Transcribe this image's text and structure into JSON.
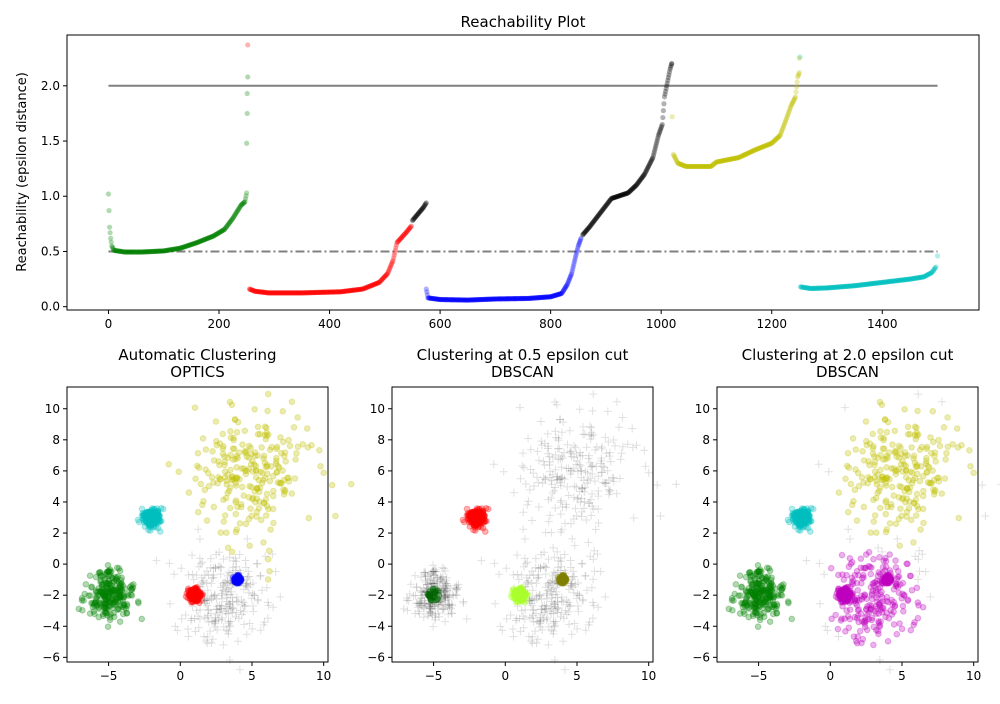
{
  "chart_data": [
    {
      "type": "scatter",
      "title": "Reachability Plot",
      "xlabel": "",
      "ylabel": "Reachability (epsilon distance)",
      "xlim": [
        -75,
        1575
      ],
      "ylim": [
        -0.03,
        2.46
      ],
      "xticks": [
        "0",
        "200",
        "400",
        "600",
        "800",
        "1000",
        "1200",
        "1400"
      ],
      "xtick_values": [
        0,
        200,
        400,
        600,
        800,
        1000,
        1200,
        1400
      ],
      "yticks": [
        "0.0",
        "0.5",
        "1.0",
        "1.5",
        "2.0"
      ],
      "ytick_values": [
        0,
        0.5,
        1.0,
        1.5,
        2.0
      ],
      "grid": false,
      "reference_lines": [
        {
          "y": 2.0,
          "x_range": [
            0,
            1500
          ],
          "style": "solid",
          "color": "#808080"
        },
        {
          "y": 0.5,
          "x_range": [
            0,
            1500
          ],
          "style": "dash-dot",
          "color": "#808080"
        }
      ],
      "series": [
        {
          "color": "#008000",
          "points": [
            [
              0,
              1.02
            ],
            [
              2,
              0.72
            ],
            [
              4,
              0.62
            ],
            [
              6,
              0.55
            ],
            [
              10,
              0.51
            ],
            [
              30,
              0.495
            ],
            [
              60,
              0.495
            ],
            [
              100,
              0.505
            ],
            [
              130,
              0.53
            ],
            [
              160,
              0.58
            ],
            [
              190,
              0.64
            ],
            [
              210,
              0.7
            ],
            [
              225,
              0.8
            ],
            [
              240,
              0.92
            ],
            [
              247,
              0.95
            ],
            [
              250,
              1.03
            ]
          ]
        },
        {
          "color": "#ff0000",
          "points": [
            [
              255,
              0.16
            ],
            [
              265,
              0.14
            ],
            [
              290,
              0.125
            ],
            [
              350,
              0.125
            ],
            [
              420,
              0.135
            ],
            [
              460,
              0.16
            ],
            [
              490,
              0.22
            ],
            [
              505,
              0.3
            ],
            [
              515,
              0.42
            ],
            [
              522,
              0.58
            ],
            [
              540,
              0.68
            ],
            [
              548,
              0.73
            ]
          ]
        },
        {
          "color": "#000000",
          "points": [
            [
              550,
              0.78
            ],
            [
              560,
              0.84
            ],
            [
              570,
              0.9
            ],
            [
              575,
              0.94
            ]
          ]
        },
        {
          "color": "#0000ff",
          "points": [
            [
              575,
              0.16
            ],
            [
              578,
              0.08
            ],
            [
              600,
              0.065
            ],
            [
              650,
              0.06
            ],
            [
              700,
              0.07
            ],
            [
              760,
              0.075
            ],
            [
              800,
              0.09
            ],
            [
              820,
              0.12
            ],
            [
              830,
              0.2
            ],
            [
              838,
              0.3
            ],
            [
              845,
              0.45
            ],
            [
              850,
              0.55
            ],
            [
              855,
              0.62
            ]
          ]
        },
        {
          "color": "#000000",
          "points": [
            [
              858,
              0.65
            ],
            [
              870,
              0.72
            ],
            [
              890,
              0.85
            ],
            [
              910,
              0.98
            ],
            [
              940,
              1.03
            ],
            [
              955,
              1.1
            ],
            [
              970,
              1.2
            ],
            [
              985,
              1.35
            ],
            [
              995,
              1.55
            ],
            [
              1002,
              1.65
            ],
            [
              1006,
              1.9
            ],
            [
              1012,
              2.05
            ],
            [
              1016,
              2.15
            ],
            [
              1019,
              2.2
            ]
          ]
        },
        {
          "color": "#bfbf00",
          "points": [
            [
              1022,
              1.38
            ],
            [
              1030,
              1.3
            ],
            [
              1045,
              1.27
            ],
            [
              1090,
              1.27
            ],
            [
              1100,
              1.31
            ],
            [
              1140,
              1.35
            ],
            [
              1170,
              1.42
            ],
            [
              1200,
              1.48
            ],
            [
              1215,
              1.55
            ],
            [
              1225,
              1.68
            ],
            [
              1235,
              1.82
            ],
            [
              1243,
              1.9
            ],
            [
              1247,
              2.08
            ],
            [
              1250,
              2.12
            ]
          ]
        },
        {
          "color": "#00bfbf",
          "points": [
            [
              1252,
              0.18
            ],
            [
              1270,
              0.165
            ],
            [
              1300,
              0.17
            ],
            [
              1350,
              0.19
            ],
            [
              1400,
              0.22
            ],
            [
              1450,
              0.25
            ],
            [
              1475,
              0.27
            ],
            [
              1490,
              0.31
            ],
            [
              1497,
              0.36
            ]
          ]
        }
      ],
      "outliers": [
        {
          "color": "#ff0000",
          "x": 252,
          "y": 2.37
        },
        {
          "color": "#008000",
          "x": 252,
          "y": 2.08
        },
        {
          "color": "#008000",
          "x": 251,
          "y": 1.93
        },
        {
          "color": "#008000",
          "x": 251,
          "y": 1.75
        },
        {
          "color": "#008000",
          "x": 250,
          "y": 1.48
        },
        {
          "color": "#000000",
          "x": 1019,
          "y": 2.2
        },
        {
          "color": "#bfbf00",
          "x": 1020,
          "y": 1.72
        },
        {
          "color": "#00bfbf",
          "x": 1251,
          "y": 2.26
        },
        {
          "color": "#bfbf00",
          "x": 1250,
          "y": 2.25
        },
        {
          "color": "#00bfbf",
          "x": 1500,
          "y": 0.46
        }
      ]
    },
    {
      "type": "scatter",
      "title": "Automatic Clustering\nOPTICS",
      "title_lines": [
        "Automatic Clustering",
        "OPTICS"
      ],
      "xlim": [
        -7.9,
        10.3
      ],
      "ylim": [
        -6.3,
        11.4
      ],
      "xticks": [
        "−5",
        "0",
        "5",
        "10"
      ],
      "xtick_values": [
        -5,
        0,
        5,
        10
      ],
      "yticks": [
        "−6",
        "−4",
        "−2",
        "0",
        "2",
        "4",
        "6",
        "8",
        "10"
      ],
      "ytick_values": [
        -6,
        -4,
        -2,
        0,
        2,
        4,
        6,
        8,
        10
      ],
      "assignments": [
        {
          "cluster": 0,
          "color": "#008000"
        },
        {
          "cluster": 1,
          "color": "#0000ff"
        },
        {
          "cluster": 2,
          "color": "#ff0000"
        },
        {
          "cluster": 3,
          "color": "#00bfbf"
        },
        {
          "cluster": 4,
          "color": "noise"
        },
        {
          "cluster": 5,
          "color": "#bfbf00"
        }
      ]
    },
    {
      "type": "scatter",
      "title": "Clustering at 0.5 epsilon cut\nDBSCAN",
      "title_lines": [
        "Clustering at 0.5 epsilon cut",
        "DBSCAN"
      ],
      "xlim": [
        -7.9,
        10.3
      ],
      "ylim": [
        -6.3,
        11.4
      ],
      "xticks": [
        "−5",
        "0",
        "5",
        "10"
      ],
      "xtick_values": [
        -5,
        0,
        5,
        10
      ],
      "yticks": [
        "−6",
        "−4",
        "−2",
        "0",
        "2",
        "4",
        "6",
        "8",
        "10"
      ],
      "ytick_values": [
        -6,
        -4,
        -2,
        0,
        2,
        4,
        6,
        8,
        10
      ],
      "assignments": [
        {
          "cluster": 0,
          "color": "#006400",
          "core_radius": 0.45
        },
        {
          "cluster": 1,
          "color": "#808000"
        },
        {
          "cluster": 2,
          "color": "#adff2f"
        },
        {
          "cluster": 3,
          "color": "#ff0000"
        },
        {
          "cluster": 4,
          "color": "noise"
        },
        {
          "cluster": 5,
          "color": "noise"
        }
      ]
    },
    {
      "type": "scatter",
      "title": "Clustering at 2.0 epsilon cut\nDBSCAN",
      "title_lines": [
        "Clustering at 2.0 epsilon cut",
        "DBSCAN"
      ],
      "xlim": [
        -7.9,
        10.3
      ],
      "ylim": [
        -6.3,
        11.4
      ],
      "xticks": [
        "−5",
        "0",
        "5",
        "10"
      ],
      "xtick_values": [
        -5,
        0,
        5,
        10
      ],
      "yticks": [
        "−6",
        "−4",
        "−2",
        "0",
        "2",
        "4",
        "6",
        "8",
        "10"
      ],
      "ytick_values": [
        -6,
        -4,
        -2,
        0,
        2,
        4,
        6,
        8,
        10
      ],
      "assignments": [
        {
          "cluster": 0,
          "color": "#008000"
        },
        {
          "cluster": 1,
          "color": "#bf00bf"
        },
        {
          "cluster": 2,
          "color": "#bf00bf"
        },
        {
          "cluster": 3,
          "color": "#00bfbf"
        },
        {
          "cluster": 4,
          "color": "#bf00bf",
          "core_radius": 3.6
        },
        {
          "cluster": 5,
          "color": "#bfbf00",
          "core_radius": 5.0
        }
      ]
    }
  ],
  "clusters": [
    {
      "center": [
        -5,
        -2
      ],
      "std": 0.8,
      "n": 250
    },
    {
      "center": [
        4,
        -1
      ],
      "std": 0.1,
      "n": 250
    },
    {
      "center": [
        1,
        -2
      ],
      "std": 0.2,
      "n": 250
    },
    {
      "center": [
        -2,
        3
      ],
      "std": 0.3,
      "n": 250
    },
    {
      "center": [
        3,
        -2
      ],
      "std": 1.6,
      "n": 250
    },
    {
      "center": [
        5,
        6
      ],
      "std": 2.0,
      "n": 250
    }
  ],
  "noise_color": "#000000"
}
